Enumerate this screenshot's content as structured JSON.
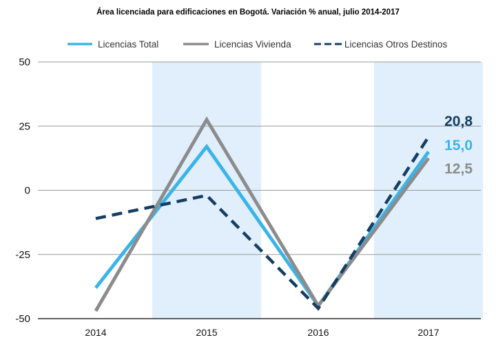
{
  "chart_data": {
    "type": "line",
    "title": "Área licenciada para edificaciones en Bogotá. Variación % anual, julio 2014-2017",
    "categories": [
      "2014",
      "2015",
      "2016",
      "2017"
    ],
    "ylim": [
      -50,
      50
    ],
    "yticks": [
      50,
      25,
      0,
      -25,
      -50
    ],
    "ytick_labels": [
      "50",
      "25",
      "0",
      "-25",
      "-50"
    ],
    "highlighted_categories": [
      "2015",
      "2017"
    ],
    "series": [
      {
        "name": "Licencias Total",
        "values": [
          -38,
          17,
          -45,
          15.0
        ],
        "color": "#3ab4e8",
        "dash": false,
        "end_label": "15,0"
      },
      {
        "name": "Licencias Vivienda",
        "values": [
          -47,
          27.5,
          -45,
          12.5
        ],
        "color": "#8c8c8c",
        "dash": false,
        "end_label": "12,5"
      },
      {
        "name": "Licencias Otros Destinos",
        "values": [
          -11,
          -2,
          -46,
          20.8
        ],
        "color": "#153e63",
        "dash": true,
        "end_label": "20,8"
      }
    ],
    "highlight_color": "#e0effb",
    "grid": true
  }
}
